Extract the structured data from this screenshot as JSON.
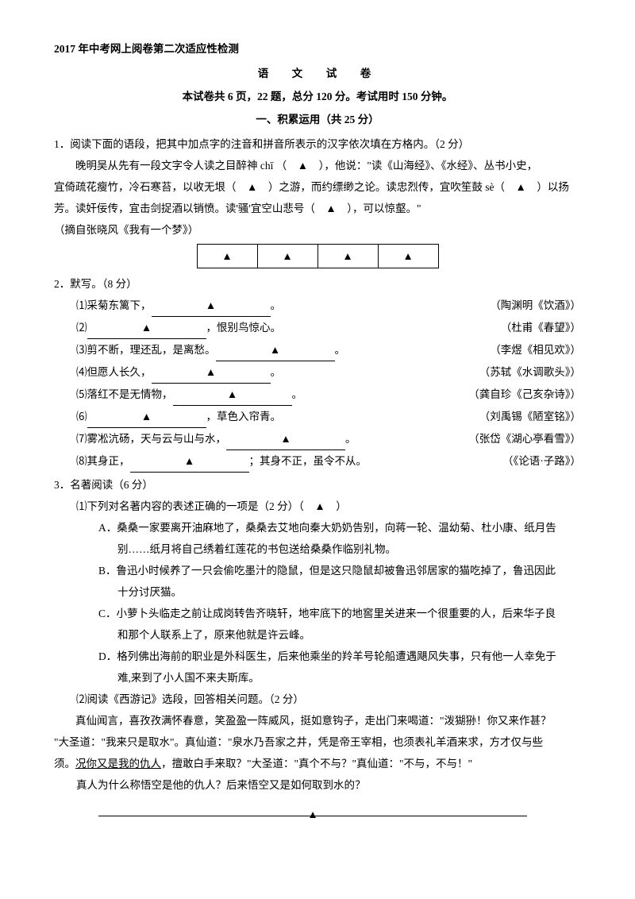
{
  "header": {
    "title": "2017 年中考网上阅卷第二次适应性检测",
    "subject": "语　文　试　卷",
    "desc": "本试卷共 6 页，22 题，总分 120 分。考试用时 150 分钟。",
    "section1": "一、积累运用（共 25 分）"
  },
  "q1": {
    "stem": "1．阅读下面的语段，把其中加点字的注音和拼音所表示的汉字依次填在方格内。（2 分）",
    "p1a": "晚明吴从先有一段文字令人读之目醉神 chī （　▲　），他说：\"读《山海经》、《水经》、丛书小史，",
    "p1b": "宜倚疏花瘦竹，冷石寒苔，以收无垠（　▲　）之游，而约缥缈之论。读忠烈传，宜吹笙鼓 sè（　▲　）以扬",
    "p1c": "芳。读奸佞传，宜击剑捉酒以销愤。读'骚'宜空山悲号（　▲　），可以惊壑。\"",
    "src": "（摘自张晓风《我有一个梦》）",
    "tri": "▲"
  },
  "q2": {
    "stem": "2．默写。（8 分）",
    "items": [
      {
        "n": "⑴",
        "left_a": "采菊东篱下，",
        "left_b": "",
        "src": "（陶渊明《饮酒》）"
      },
      {
        "n": "⑵",
        "left_a": "",
        "left_b": "，恨别鸟惊心。",
        "src": "（杜甫《春望》）"
      },
      {
        "n": "⑶",
        "left_a": "剪不断，理还乱，是离愁。",
        "left_b": "",
        "src": "（李煜《相见欢》）"
      },
      {
        "n": "⑷",
        "left_a": "但愿人长久，",
        "left_b": "",
        "src": "（苏轼《水调歌头》）"
      },
      {
        "n": "⑸",
        "left_a": "落红不是无情物，",
        "left_b": "",
        "src": "（龚自珍《己亥杂诗》）"
      },
      {
        "n": "⑹",
        "left_a": "",
        "left_b": "，草色入帘青。",
        "src": "（刘禹锡《陋室铭》）"
      },
      {
        "n": "⑺",
        "left_a": "雾凇沆砀，天与云与山与水，",
        "left_b": "",
        "src": "（张岱《湖心亭看雪》）"
      },
      {
        "n": "⑻",
        "left_a": "其身正，",
        "left_b": "；其身不正，虽令不从。",
        "src": "（《论语·子路》）"
      }
    ]
  },
  "q3": {
    "stem": "3．名著阅读（6 分）",
    "sub1": "⑴下列对名著内容的表述正确的一项是（2 分）（　▲　）",
    "A1": "A．桑桑一家要离开油麻地了，桑桑去艾地向秦大奶奶告别，向蒋一轮、温幼菊、杜小康、纸月告",
    "A2": "别……纸月将自己绣着红莲花的书包送给桑桑作临别礼物。",
    "B1": "B．鲁迅小时候养了一只会偷吃墨汁的隐鼠，但是这只隐鼠却被鲁迅邻居家的猫吃掉了，鲁迅因此",
    "B2": "十分讨厌猫。",
    "C1": "C．小萝卜头临走之前让成岗转告齐晓轩，地牢底下的地窖里关进来一个很重要的人，后来华子良",
    "C2": "和那个人联系上了，原来他就是许云峰。",
    "D1": "D．格列佛出海前的职业是外科医生，后来他乘坐的羚羊号轮船遭遇飓风失事，只有他一人幸免于",
    "D2": "难,来到了小人国不来夫斯库。",
    "sub2": "⑵阅读《西游记》选段，回答相关问题。（2 分）",
    "p2a": "真仙闻言，喜孜孜满怀春意，笑盈盈一阵威风，挺如意钩子，走出门来喝道：\"泼猢狲！你又来作甚？",
    "p2b": "\"大圣道：\"我来只是取水\"。真仙道：\"泉水乃吾家之井，凭是帝王宰相，也须表礼羊酒来求，方才仅与些",
    "p2c_a": "须。",
    "p2c_b": "况你又是我的仇人",
    "p2c_c": "，擅敢白手来取？\"大圣道：\"真个不与？\"真仙道：\"不与，不与！\"",
    "ask": "真人为什么称悟空是他的仇人？后来悟空又是如何取到水的？",
    "tri": "▲"
  }
}
